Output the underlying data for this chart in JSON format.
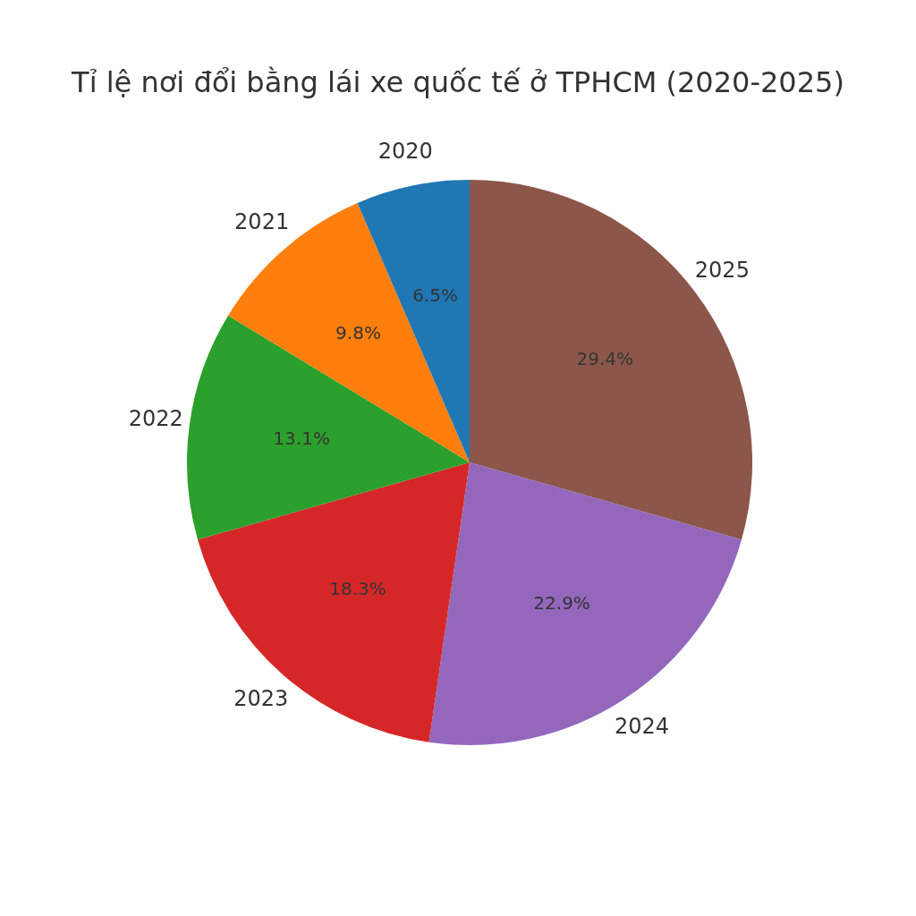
{
  "chart_data": {
    "type": "pie",
    "title": "Tỉ lệ nơi đổi bằng lái xe quốc tế ở TPHCM (2020-2025)",
    "categories": [
      "2020",
      "2021",
      "2022",
      "2023",
      "2024",
      "2025"
    ],
    "values": [
      6.5,
      9.8,
      13.1,
      18.3,
      22.9,
      29.4
    ],
    "colors": [
      "#1f77b4",
      "#ff7f0e",
      "#2ca02c",
      "#d62728",
      "#9467bd",
      "#8c564b"
    ],
    "value_labels": [
      "6.5%",
      "9.8%",
      "13.1%",
      "18.3%",
      "22.9%",
      "29.4%"
    ]
  }
}
